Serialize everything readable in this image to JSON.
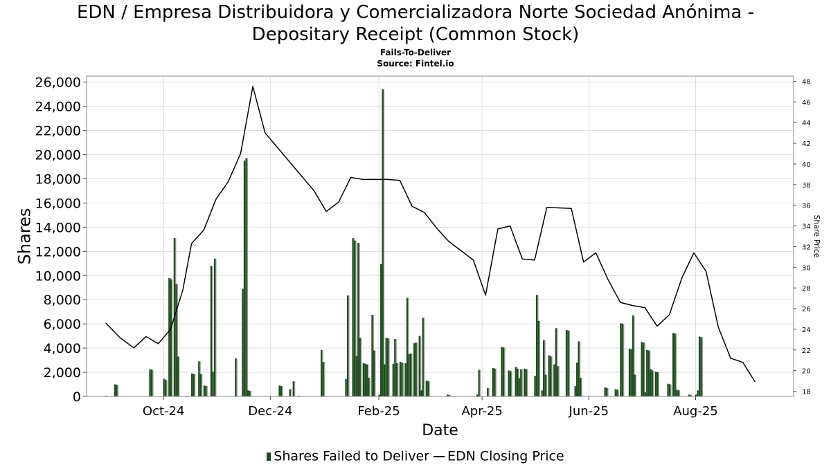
{
  "header": {
    "title_line1": "EDN / Empresa Distribuidora y Comercializadora Norte Sociedad Anónima -",
    "title_line2": "Depositary Receipt (Common Stock)",
    "subtitle": "Fails-To-Deliver",
    "source": "Source: Fintel.io"
  },
  "legend": {
    "bars": "Shares Failed to Deliver",
    "line": "EDN Closing Price"
  },
  "colors": {
    "bar": "#1b4d1b",
    "bar_shadow": "#999999",
    "line": "#000000",
    "grid": "#dddddd"
  },
  "chart_data": {
    "type": "bar",
    "xlabel": "Date",
    "ylabel": "Shares",
    "y2label": "Share Price",
    "ylim": [
      0,
      26500
    ],
    "y2lim": [
      17.5,
      48.5
    ],
    "xlim": [
      "2024-08-18",
      "2025-09-26"
    ],
    "grid": true,
    "legend_position": "bottom",
    "x_ticks": [
      {
        "label": "Oct-24",
        "date": "2024-10-01"
      },
      {
        "label": "Dec-24",
        "date": "2024-12-01"
      },
      {
        "label": "Feb-25",
        "date": "2025-02-01"
      },
      {
        "label": "Apr-25",
        "date": "2025-04-01"
      },
      {
        "label": "Jun-25",
        "date": "2025-06-01"
      },
      {
        "label": "Aug-25",
        "date": "2025-08-01"
      }
    ],
    "y_ticks": [
      "0",
      "2,000",
      "4,000",
      "6,000",
      "8,000",
      "10,000",
      "12,000",
      "14,000",
      "16,000",
      "18,000",
      "20,000",
      "22,000",
      "24,000",
      "26,000"
    ],
    "y2_ticks": [
      "18",
      "20",
      "22",
      "24",
      "26",
      "28",
      "30",
      "32",
      "34",
      "36",
      "38",
      "40",
      "42",
      "44",
      "46",
      "48"
    ],
    "series": [
      {
        "name": "Shares Failed to Deliver",
        "type": "bar",
        "points": [
          [
            "2024-08-29",
            50
          ],
          [
            "2024-09-03",
            1000
          ],
          [
            "2024-09-04",
            950
          ],
          [
            "2024-09-23",
            2250
          ],
          [
            "2024-09-24",
            2200
          ],
          [
            "2024-10-01",
            1450
          ],
          [
            "2024-10-02",
            1350
          ],
          [
            "2024-10-04",
            9800
          ],
          [
            "2024-10-05",
            9700
          ],
          [
            "2024-10-07",
            13100
          ],
          [
            "2024-10-08",
            9300
          ],
          [
            "2024-10-09",
            3300
          ],
          [
            "2024-10-14",
            50
          ],
          [
            "2024-10-17",
            1900
          ],
          [
            "2024-10-18",
            1850
          ],
          [
            "2024-10-21",
            2900
          ],
          [
            "2024-10-22",
            1850
          ],
          [
            "2024-10-24",
            900
          ],
          [
            "2024-10-25",
            850
          ],
          [
            "2024-10-28",
            10800
          ],
          [
            "2024-10-29",
            2050
          ],
          [
            "2024-10-30",
            11400
          ],
          [
            "2024-11-11",
            3150
          ],
          [
            "2024-11-15",
            8900
          ],
          [
            "2024-11-16",
            19500
          ],
          [
            "2024-11-17",
            19700
          ],
          [
            "2024-11-18",
            500
          ],
          [
            "2024-11-19",
            450
          ],
          [
            "2024-12-06",
            900
          ],
          [
            "2024-12-07",
            850
          ],
          [
            "2024-12-12",
            600
          ],
          [
            "2024-12-14",
            1250
          ],
          [
            "2024-12-17",
            50
          ],
          [
            "2024-12-30",
            3850
          ],
          [
            "2024-12-31",
            2850
          ],
          [
            "2025-01-13",
            1450
          ],
          [
            "2025-01-14",
            8350
          ],
          [
            "2025-01-17",
            13100
          ],
          [
            "2025-01-18",
            12900
          ],
          [
            "2025-01-19",
            3350
          ],
          [
            "2025-01-20",
            12700
          ],
          [
            "2025-01-21",
            4850
          ],
          [
            "2025-01-23",
            2750
          ],
          [
            "2025-01-24",
            2700
          ],
          [
            "2025-01-25",
            2650
          ],
          [
            "2025-01-26",
            1550
          ],
          [
            "2025-01-28",
            6750
          ],
          [
            "2025-01-29",
            3800
          ],
          [
            "2025-02-01",
            150
          ],
          [
            "2025-02-02",
            10950
          ],
          [
            "2025-02-03",
            25400
          ],
          [
            "2025-02-04",
            2650
          ],
          [
            "2025-02-05",
            4850
          ],
          [
            "2025-02-06",
            4800
          ],
          [
            "2025-02-09",
            2700
          ],
          [
            "2025-02-10",
            4750
          ],
          [
            "2025-02-11",
            2750
          ],
          [
            "2025-02-13",
            2850
          ],
          [
            "2025-02-14",
            2800
          ],
          [
            "2025-02-16",
            2750
          ],
          [
            "2025-02-17",
            8150
          ],
          [
            "2025-02-18",
            3500
          ],
          [
            "2025-02-19",
            3550
          ],
          [
            "2025-02-21",
            4400
          ],
          [
            "2025-02-22",
            4450
          ],
          [
            "2025-02-24",
            5000
          ],
          [
            "2025-02-25",
            500
          ],
          [
            "2025-02-26",
            6500
          ],
          [
            "2025-02-28",
            1300
          ],
          [
            "2025-03-01",
            1250
          ],
          [
            "2025-03-12",
            150
          ],
          [
            "2025-03-13",
            100
          ],
          [
            "2025-03-29",
            150
          ],
          [
            "2025-03-30",
            2200
          ],
          [
            "2025-04-04",
            700
          ],
          [
            "2025-04-07",
            2350
          ],
          [
            "2025-04-08",
            2300
          ],
          [
            "2025-04-12",
            4100
          ],
          [
            "2025-04-13",
            4050
          ],
          [
            "2025-04-16",
            2150
          ],
          [
            "2025-04-17",
            2100
          ],
          [
            "2025-04-20",
            2450
          ],
          [
            "2025-04-21",
            2300
          ],
          [
            "2025-04-22",
            1500
          ],
          [
            "2025-04-23",
            2250
          ],
          [
            "2025-04-25",
            2300
          ],
          [
            "2025-04-26",
            2250
          ],
          [
            "2025-05-01",
            1700
          ],
          [
            "2025-05-02",
            8400
          ],
          [
            "2025-05-03",
            6250
          ],
          [
            "2025-05-05",
            500
          ],
          [
            "2025-05-06",
            4650
          ],
          [
            "2025-05-07",
            1800
          ],
          [
            "2025-05-09",
            3400
          ],
          [
            "2025-05-10",
            3300
          ],
          [
            "2025-05-12",
            2650
          ],
          [
            "2025-05-13",
            5650
          ],
          [
            "2025-05-14",
            2500
          ],
          [
            "2025-05-19",
            5500
          ],
          [
            "2025-05-20",
            5450
          ],
          [
            "2025-05-24",
            850
          ],
          [
            "2025-05-25",
            2800
          ],
          [
            "2025-05-26",
            4550
          ],
          [
            "2025-05-27",
            1550
          ],
          [
            "2025-06-10",
            750
          ],
          [
            "2025-06-11",
            700
          ],
          [
            "2025-06-16",
            600
          ],
          [
            "2025-06-17",
            550
          ],
          [
            "2025-06-19",
            6050
          ],
          [
            "2025-06-20",
            6000
          ],
          [
            "2025-06-24",
            3950
          ],
          [
            "2025-06-25",
            3900
          ],
          [
            "2025-06-26",
            6700
          ],
          [
            "2025-06-27",
            1800
          ],
          [
            "2025-07-01",
            4500
          ],
          [
            "2025-07-02",
            4450
          ],
          [
            "2025-07-03",
            350
          ],
          [
            "2025-07-04",
            3850
          ],
          [
            "2025-07-05",
            3800
          ],
          [
            "2025-07-06",
            2250
          ],
          [
            "2025-07-07",
            2150
          ],
          [
            "2025-07-09",
            2050
          ],
          [
            "2025-07-10",
            2000
          ],
          [
            "2025-07-16",
            1050
          ],
          [
            "2025-07-17",
            1000
          ],
          [
            "2025-07-19",
            5250
          ],
          [
            "2025-07-20",
            5200
          ],
          [
            "2025-07-21",
            550
          ],
          [
            "2025-07-22",
            500
          ],
          [
            "2025-07-28",
            150
          ],
          [
            "2025-07-29",
            100
          ],
          [
            "2025-08-01",
            150
          ],
          [
            "2025-08-02",
            500
          ],
          [
            "2025-08-03",
            4950
          ],
          [
            "2025-08-04",
            4900
          ]
        ]
      },
      {
        "name": "EDN Closing Price",
        "type": "line",
        "points": [
          [
            "2024-08-29",
            24.6
          ],
          [
            "2024-09-06",
            23.2
          ],
          [
            "2024-09-14",
            22.2
          ],
          [
            "2024-09-21",
            23.3
          ],
          [
            "2024-09-28",
            22.6
          ],
          [
            "2024-10-05",
            24.0
          ],
          [
            "2024-10-12",
            27.8
          ],
          [
            "2024-10-17",
            32.3
          ],
          [
            "2024-10-24",
            33.6
          ],
          [
            "2024-10-31",
            36.6
          ],
          [
            "2024-11-07",
            38.3
          ],
          [
            "2024-11-14",
            41.0
          ],
          [
            "2024-11-21",
            47.5
          ],
          [
            "2024-11-28",
            43.0
          ],
          [
            "2024-12-12",
            40.2
          ],
          [
            "2024-12-26",
            37.4
          ],
          [
            "2025-01-02",
            35.4
          ],
          [
            "2025-01-09",
            36.3
          ],
          [
            "2025-01-16",
            38.7
          ],
          [
            "2025-01-23",
            38.5
          ],
          [
            "2025-02-06",
            38.5
          ],
          [
            "2025-02-13",
            38.4
          ],
          [
            "2025-02-20",
            35.9
          ],
          [
            "2025-02-27",
            35.3
          ],
          [
            "2025-03-06",
            33.8
          ],
          [
            "2025-03-13",
            32.5
          ],
          [
            "2025-03-27",
            30.7
          ],
          [
            "2025-04-03",
            27.3
          ],
          [
            "2025-04-10",
            33.7
          ],
          [
            "2025-04-17",
            34.0
          ],
          [
            "2025-04-24",
            30.8
          ],
          [
            "2025-05-01",
            30.7
          ],
          [
            "2025-05-08",
            35.8
          ],
          [
            "2025-05-22",
            35.7
          ],
          [
            "2025-05-29",
            30.5
          ],
          [
            "2025-06-05",
            31.4
          ],
          [
            "2025-06-12",
            28.8
          ],
          [
            "2025-06-19",
            26.6
          ],
          [
            "2025-06-26",
            26.3
          ],
          [
            "2025-07-03",
            26.1
          ],
          [
            "2025-07-10",
            24.3
          ],
          [
            "2025-07-17",
            25.4
          ],
          [
            "2025-07-24",
            28.9
          ],
          [
            "2025-07-31",
            31.4
          ],
          [
            "2025-08-07",
            29.6
          ],
          [
            "2025-08-14",
            24.2
          ],
          [
            "2025-08-21",
            21.2
          ],
          [
            "2025-08-28",
            20.8
          ],
          [
            "2025-09-04",
            18.9
          ]
        ]
      }
    ]
  }
}
